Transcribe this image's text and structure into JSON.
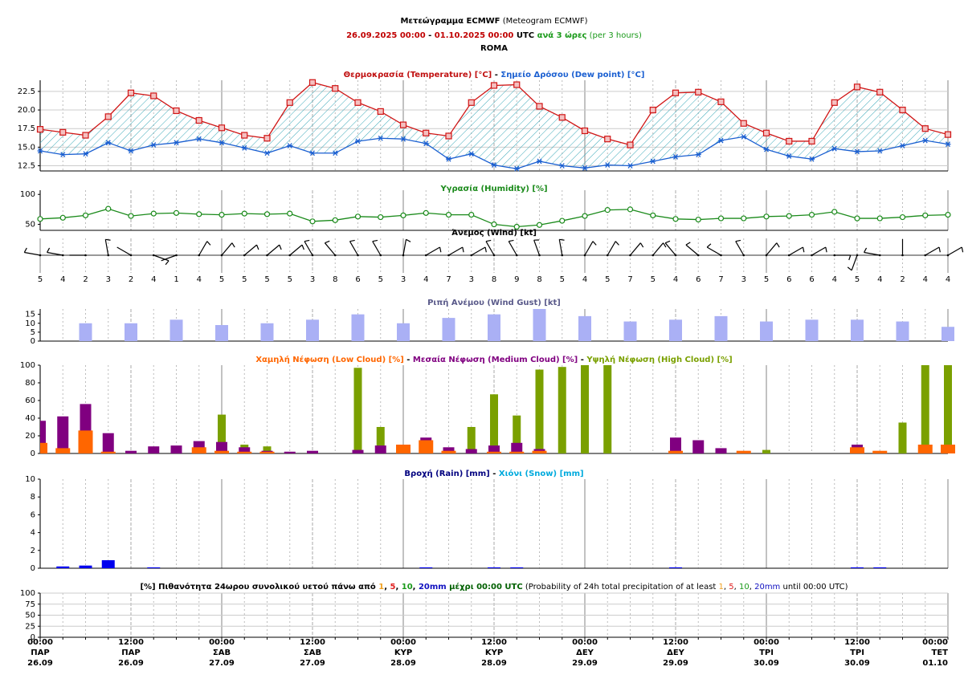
{
  "header": {
    "lines": [
      [
        {
          "text": "Μετεώγραμμα ECMWF",
          "bold": true
        },
        {
          "text": " (Meteogram ECMWF)"
        }
      ],
      [
        {
          "text": "26.09.2025 00:00",
          "color": "#c00000",
          "bold": true
        },
        {
          "text": " - ",
          "bold": true
        },
        {
          "text": "01.10.2025 00:00",
          "color": "#c00000",
          "bold": true
        },
        {
          "text": " UTC",
          "bold": true
        },
        {
          "text": " ανά 3 ώρες",
          "color": "#1a9a1a",
          "bold": true
        },
        {
          "text": " (per 3 hours)",
          "color": "#1a9a1a"
        }
      ],
      [
        {
          "text": "ROMA",
          "bold": true
        }
      ]
    ]
  },
  "x_axis": {
    "categories": [
      {
        "time": "00:00",
        "day": "ΠΑΡ",
        "date": "26.09"
      },
      null,
      null,
      null,
      {
        "time": "12:00",
        "day": "ΠΑΡ",
        "date": "26.09"
      },
      null,
      null,
      null,
      {
        "time": "00:00",
        "day": "ΣΑΒ",
        "date": "27.09"
      },
      null,
      null,
      null,
      {
        "time": "12:00",
        "day": "ΣΑΒ",
        "date": "27.09"
      },
      null,
      null,
      null,
      {
        "time": "00:00",
        "day": "ΚΥΡ",
        "date": "28.09"
      },
      null,
      null,
      null,
      {
        "time": "12:00",
        "day": "ΚΥΡ",
        "date": "28.09"
      },
      null,
      null,
      null,
      {
        "time": "00:00",
        "day": "ΔΕΥ",
        "date": "29.09"
      },
      null,
      null,
      null,
      {
        "time": "12:00",
        "day": "ΔΕΥ",
        "date": "29.09"
      },
      null,
      null,
      null,
      {
        "time": "00:00",
        "day": "ΤΡΙ",
        "date": "30.09"
      },
      null,
      null,
      null,
      {
        "time": "12:00",
        "day": "ΤΡΙ",
        "date": "30.09"
      },
      null,
      null,
      null,
      {
        "time": "00:00",
        "day": "ΤΕΤ",
        "date": "01.10"
      }
    ]
  },
  "chart_data": [
    {
      "type": "line",
      "fill_between": true,
      "grid": true,
      "title": [
        {
          "text": "Θερμοκρασία (Temperature) [°C]",
          "color": "#c01010",
          "bold": true
        },
        {
          "text": " - ",
          "bold": true
        },
        {
          "text": "Σημείο Δρόσου (Dew point) [°C]",
          "color": "#1a5fd1",
          "bold": true
        }
      ],
      "ylim": [
        11.8,
        24
      ],
      "yticks": [
        12.5,
        {
          "value": 15,
          "label": "15.0"
        },
        17.5,
        {
          "value": 20,
          "label": "20.0"
        },
        22.5
      ],
      "series": [
        {
          "color": "#d01515",
          "marker": "square",
          "values": [
            17.4,
            17.0,
            16.6,
            19.1,
            22.3,
            21.9,
            19.9,
            18.6,
            17.6,
            16.6,
            16.2,
            21.0,
            23.7,
            22.9,
            21.0,
            19.8,
            18.0,
            16.9,
            16.5,
            21.0,
            23.3,
            23.4,
            20.5,
            19.0,
            17.2,
            16.1,
            15.3,
            20.0,
            22.3,
            22.4,
            21.1,
            18.2,
            16.9,
            15.8,
            15.8,
            21.0,
            23.1,
            22.4,
            20.0,
            17.5,
            16.7
          ]
        },
        {
          "color": "#1a5fd1",
          "marker": "star",
          "values": [
            14.5,
            14.0,
            14.1,
            15.6,
            14.5,
            15.3,
            15.6,
            16.1,
            15.6,
            14.9,
            14.2,
            15.2,
            14.2,
            14.2,
            15.8,
            16.2,
            16.1,
            15.5,
            13.4,
            14.1,
            12.6,
            12.1,
            13.1,
            12.5,
            12.2,
            12.6,
            12.5,
            13.1,
            13.7,
            14.0,
            15.9,
            16.4,
            14.7,
            13.8,
            13.4,
            14.8,
            14.4,
            14.5,
            15.2,
            15.9,
            15.4
          ]
        }
      ]
    },
    {
      "type": "line",
      "grid": false,
      "title": [
        {
          "text": "Υγρασία (Humidity) [%]",
          "color": "#1a8a1a",
          "bold": true
        }
      ],
      "ylim": [
        40,
        107
      ],
      "yticks": [
        50,
        100
      ],
      "series": [
        {
          "color": "#1a8a1a",
          "marker": "circle",
          "values": [
            59,
            61,
            65,
            76,
            64,
            68,
            69,
            67,
            66,
            68,
            67,
            68,
            55,
            57,
            63,
            62,
            65,
            69,
            66,
            66,
            50,
            46,
            49,
            56,
            64,
            74,
            75,
            65,
            59,
            58,
            60,
            60,
            63,
            64,
            66,
            71,
            60,
            60,
            62,
            65,
            66
          ]
        }
      ]
    },
    {
      "type": "wind",
      "title": [
        {
          "text": "Άνεμος (Wind) [kt]",
          "bold": true
        }
      ],
      "direction": [
        280,
        280,
        270,
        350,
        300,
        110,
        250,
        30,
        40,
        50,
        50,
        50,
        330,
        320,
        330,
        330,
        10,
        60,
        60,
        60,
        330,
        330,
        340,
        350,
        30,
        30,
        40,
        40,
        320,
        310,
        300,
        330,
        40,
        60,
        60,
        90,
        200,
        280,
        0,
        60,
        60
      ],
      "speed": [
        5,
        4,
        2,
        3,
        2,
        4,
        1,
        4,
        5,
        5,
        5,
        5,
        3,
        8,
        6,
        5,
        3,
        4,
        7,
        3,
        8,
        9,
        8,
        5,
        4,
        5,
        7,
        5,
        4,
        6,
        7,
        3,
        5,
        6,
        6,
        4,
        5,
        4,
        2,
        4,
        4
      ]
    },
    {
      "type": "bar",
      "grid": false,
      "title": [
        {
          "text": "Ριπή Ανέμου (Wind Gust) [kt]",
          "color": "#5a5a8a",
          "bold": true
        }
      ],
      "ylim": [
        0,
        18
      ],
      "yticks": [
        0,
        5,
        10,
        15
      ],
      "series": [
        {
          "color": "#aab0f5",
          "values": [
            null,
            null,
            10,
            null,
            10,
            null,
            12,
            null,
            9,
            null,
            10,
            null,
            12,
            null,
            15,
            null,
            10,
            null,
            13,
            null,
            15,
            null,
            18,
            null,
            14,
            null,
            11,
            null,
            12,
            null,
            14,
            null,
            11,
            null,
            12,
            null,
            12,
            null,
            11,
            null,
            8
          ]
        }
      ]
    },
    {
      "type": "bar",
      "grid": false,
      "title": [
        {
          "text": "Χαμηλή Νέφωση (Low Cloud) [%]",
          "color": "#ff6600",
          "bold": true
        },
        {
          "text": " - ",
          "bold": true
        },
        {
          "text": "Μεσαία Νέφωση (Medium Cloud) [%]",
          "color": "#800080",
          "bold": true
        },
        {
          "text": " - ",
          "bold": true
        },
        {
          "text": "Υψηλή Νέφωση (High Cloud) [%]",
          "color": "#7aa000",
          "bold": true
        }
      ],
      "ylim": [
        0,
        100
      ],
      "yticks": [
        0,
        20,
        40,
        60,
        80,
        100
      ],
      "series": [
        {
          "color": "#7aa000",
          "values": [
            0,
            0,
            0,
            0,
            0,
            0,
            0,
            0,
            44,
            10,
            8,
            0,
            0,
            0,
            97,
            30,
            0,
            0,
            0,
            30,
            67,
            43,
            95,
            98,
            100,
            100,
            0,
            0,
            0,
            0,
            0,
            0,
            4,
            0,
            0,
            0,
            0,
            0,
            35,
            100,
            100
          ]
        },
        {
          "color": "#800080",
          "values": [
            37,
            42,
            56,
            23,
            3,
            8,
            9,
            14,
            13,
            7,
            3,
            2,
            3,
            0,
            4,
            9,
            10,
            18,
            7,
            5,
            9,
            12,
            5,
            0,
            0,
            0,
            0,
            0,
            18,
            15,
            6,
            0,
            0,
            0,
            0,
            0,
            10,
            0,
            0,
            0,
            0
          ]
        },
        {
          "color": "#ff6600",
          "values": [
            12,
            6,
            26,
            2,
            0,
            0,
            0,
            7,
            3,
            2,
            2,
            0,
            0,
            0,
            0,
            0,
            10,
            15,
            3,
            0,
            2,
            2,
            3,
            0,
            0,
            0,
            0,
            0,
            3,
            0,
            0,
            3,
            0,
            0,
            0,
            0,
            7,
            3,
            0,
            10,
            10
          ]
        }
      ]
    },
    {
      "type": "bar",
      "grid": false,
      "title": [
        {
          "text": "Βροχή (Rain) [mm]",
          "color": "#00007f",
          "bold": true
        },
        {
          "text": " - ",
          "bold": true
        },
        {
          "text": "Χιόνι (Snow) [mm]",
          "color": "#00aadd",
          "bold": true
        }
      ],
      "ylim": [
        0,
        10
      ],
      "yticks": [
        0,
        2,
        4,
        6,
        8,
        10
      ],
      "series": [
        {
          "color": "#0000ee",
          "values": [
            0,
            0.2,
            0.3,
            0.9,
            0,
            0.1,
            0,
            0,
            0,
            0,
            0,
            0,
            0,
            0,
            0,
            0,
            0,
            0.1,
            0,
            0,
            0.1,
            0.1,
            0,
            0,
            0,
            0,
            0,
            0,
            0.1,
            0,
            0,
            0,
            0,
            0,
            0,
            0,
            0.1,
            0.1,
            0,
            0,
            0
          ]
        },
        {
          "color": "#00aadd",
          "values": [
            0,
            0,
            0,
            0,
            0,
            0,
            0,
            0,
            0,
            0,
            0,
            0,
            0,
            0,
            0,
            0,
            0,
            0,
            0,
            0,
            0,
            0,
            0,
            0,
            0,
            0,
            0,
            0,
            0,
            0,
            0,
            0,
            0,
            0,
            0,
            0,
            0,
            0,
            0,
            0,
            0
          ]
        }
      ]
    },
    {
      "type": "probability",
      "grid": true,
      "title": [
        {
          "text": "[%] Πιθανότητα 24ωρου συνολικού υετού πάνω από ",
          "bold": true
        },
        {
          "text": "1",
          "color": "#f0a020",
          "bold": true
        },
        {
          "text": ", ",
          "bold": true
        },
        {
          "text": "5",
          "color": "#e02020",
          "bold": true
        },
        {
          "text": ", ",
          "bold": true
        },
        {
          "text": "10",
          "color": "#1a9a1a",
          "bold": true
        },
        {
          "text": ", ",
          "bold": true
        },
        {
          "text": "20mm",
          "color": "#1010c0",
          "bold": true
        },
        {
          "text": " μέχρι 00:00 UTC",
          "color": "#006000",
          "bold": true
        },
        {
          "text": " (Probability of 24h total precipitation of at least "
        },
        {
          "text": "1",
          "color": "#f0a020"
        },
        {
          "text": ", "
        },
        {
          "text": "5",
          "color": "#e02020"
        },
        {
          "text": ", "
        },
        {
          "text": "10",
          "color": "#1a9a1a"
        },
        {
          "text": ", "
        },
        {
          "text": "20mm",
          "color": "#1010c0"
        },
        {
          "text": " until 00:00 UTC)"
        }
      ],
      "ylim": [
        0,
        100
      ],
      "yticks": [
        0,
        25,
        50,
        75,
        100
      ]
    }
  ]
}
